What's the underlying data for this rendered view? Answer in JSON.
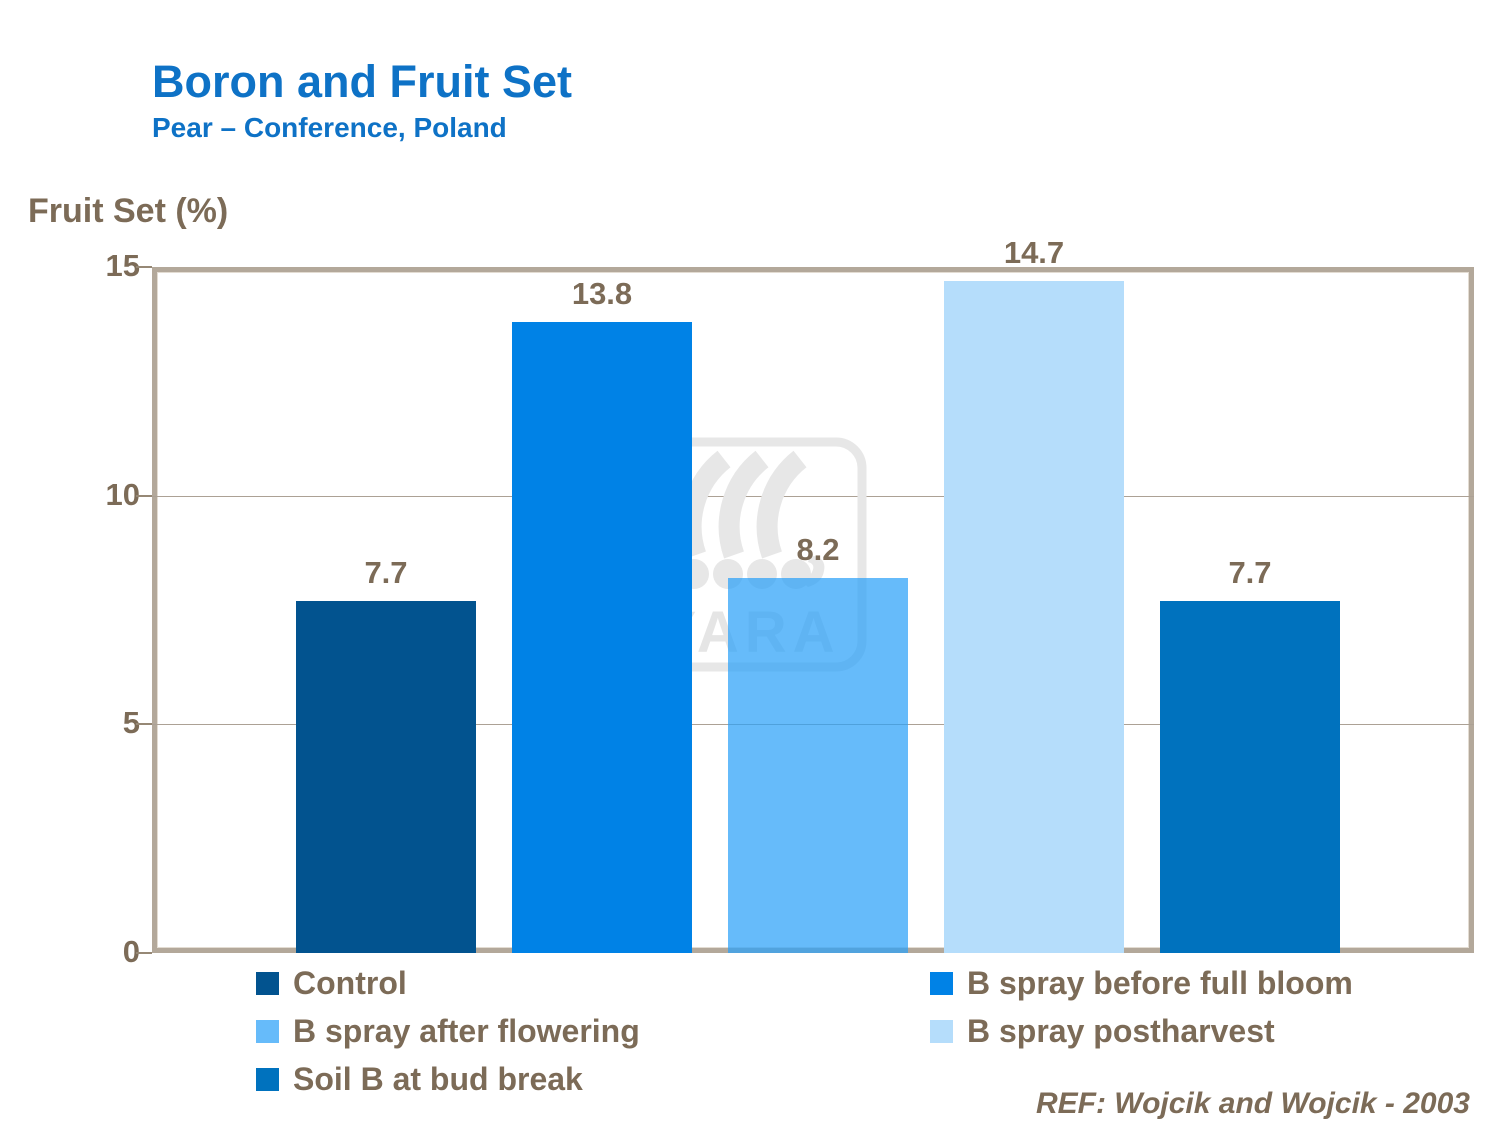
{
  "header": {
    "title": "Boron and Fruit Set",
    "subtitle": "Pear – Conference, Poland"
  },
  "axis": {
    "label": "Fruit Set (%)"
  },
  "footer": {
    "ref": "REF: Wojcik and Wojcik - 2003"
  },
  "watermark": {
    "text": "YARA"
  },
  "colors": {
    "title_blue": "#0E72C6",
    "text_brown": "#7C6B57",
    "frame_tan": "#B3A89A",
    "gridline": "#ACA195",
    "watermark_gray": "#E7E7E7"
  },
  "chart_data": {
    "type": "bar",
    "title": "Boron and Fruit Set",
    "subtitle": "Pear – Conference, Poland",
    "ylabel": "Fruit Set (%)",
    "ylim": [
      0,
      15
    ],
    "yticks": [
      0,
      5,
      10,
      15
    ],
    "grid": true,
    "legend_position": "bottom",
    "categories": [
      "Control",
      "B spray before full bloom",
      "B spray after flowering",
      "B spray postharvest",
      "Soil B at bud break"
    ],
    "values": [
      7.7,
      13.8,
      8.2,
      14.7,
      7.7
    ],
    "value_labels": [
      "7.7",
      "13.8",
      "8.2",
      "14.7",
      "7.7"
    ],
    "series_colors": [
      "#02538F",
      "#0082E6",
      "#66BBFA",
      "#B5DDFB",
      "#0072BE"
    ],
    "bar_fills": [
      "#02538F",
      "#0082E6",
      "rgba(43,161,248,0.72)",
      "#B5DDFB",
      "#0072BE"
    ]
  }
}
